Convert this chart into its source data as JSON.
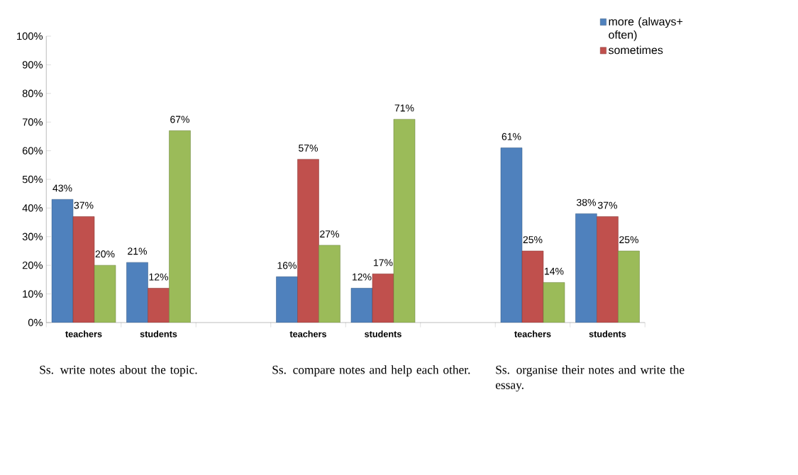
{
  "chart_data": {
    "type": "bar",
    "categories": [
      "teachers",
      "students",
      null,
      "teachers",
      "students",
      null,
      "teachers",
      "students"
    ],
    "series": [
      {
        "name": "more (always+ often)",
        "color": "#4f81bd",
        "values": [
          43,
          21,
          null,
          16,
          12,
          null,
          61,
          38
        ],
        "value_labels": [
          "43%",
          "21%",
          null,
          "16%",
          "12%",
          null,
          "61%",
          "38%"
        ]
      },
      {
        "name": "sometimes",
        "color": "#c0504d",
        "values": [
          37,
          12,
          null,
          57,
          17,
          null,
          25,
          37
        ],
        "value_labels": [
          "37%",
          "12%",
          null,
          "57%",
          "17%",
          null,
          "25%",
          "37%"
        ]
      },
      {
        "color": "#9bbb59",
        "values": [
          20,
          67,
          null,
          27,
          71,
          null,
          14,
          25
        ],
        "value_labels": [
          "20%",
          "67%",
          null,
          "27%",
          "71%",
          null,
          "14%",
          "25%"
        ]
      }
    ],
    "ylim": [
      0,
      100
    ],
    "yticks": [
      {
        "value": 0,
        "label": "0%"
      },
      {
        "value": 10,
        "label": "10%"
      },
      {
        "value": 20,
        "label": "20%"
      },
      {
        "value": 30,
        "label": "30%"
      },
      {
        "value": 40,
        "label": "40%"
      },
      {
        "value": 50,
        "label": "50%"
      },
      {
        "value": 60,
        "label": "60%"
      },
      {
        "value": 70,
        "label": "70%"
      },
      {
        "value": 80,
        "label": "80%"
      },
      {
        "value": 90,
        "label": "90%"
      },
      {
        "value": 100,
        "label": "100%"
      }
    ],
    "legend": "top right",
    "grid": false,
    "annotations": [
      "Ss. write notes about the topic.",
      "Ss. compare notes and help each other.",
      "Ss. organise their notes and write the essay."
    ]
  }
}
